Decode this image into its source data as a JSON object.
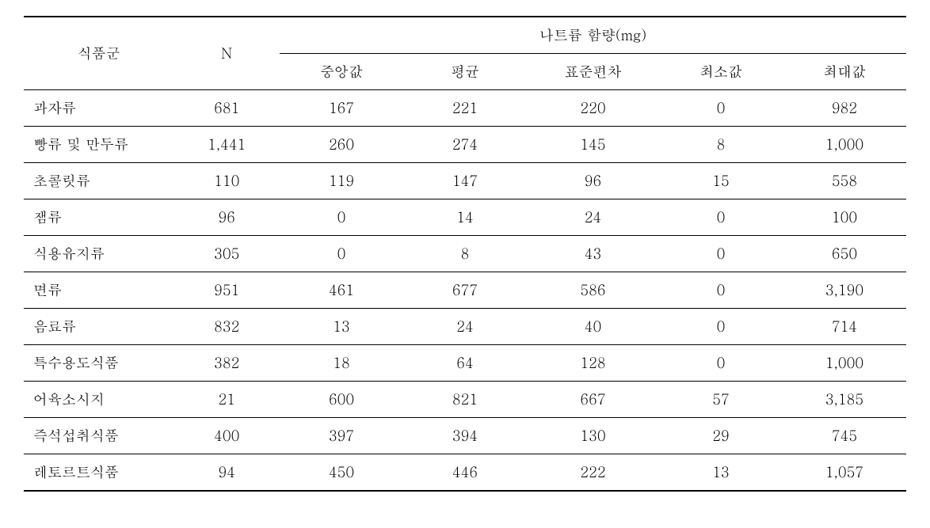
{
  "table": {
    "headers": {
      "category": "식품군",
      "n": "N",
      "sodium_group": "나트륨 함량(mg)",
      "median": "중앙값",
      "mean": "평균",
      "stddev": "표준편차",
      "min": "최소값",
      "max": "최대값"
    },
    "rows": [
      {
        "category": "과자류",
        "n": "681",
        "median": "167",
        "mean": "221",
        "stddev": "220",
        "min": "0",
        "max": "982"
      },
      {
        "category": "빵류 및 만두류",
        "n": "1,441",
        "median": "260",
        "mean": "274",
        "stddev": "145",
        "min": "8",
        "max": "1,000"
      },
      {
        "category": "초콜릿류",
        "n": "110",
        "median": "119",
        "mean": "147",
        "stddev": "96",
        "min": "15",
        "max": "558"
      },
      {
        "category": "잼류",
        "n": "96",
        "median": "0",
        "mean": "14",
        "stddev": "24",
        "min": "0",
        "max": "100"
      },
      {
        "category": "식용유지류",
        "n": "305",
        "median": "0",
        "mean": "8",
        "stddev": "43",
        "min": "0",
        "max": "650"
      },
      {
        "category": "면류",
        "n": "951",
        "median": "461",
        "mean": "677",
        "stddev": "586",
        "min": "0",
        "max": "3,190"
      },
      {
        "category": "음료류",
        "n": "832",
        "median": "13",
        "mean": "24",
        "stddev": "40",
        "min": "0",
        "max": "714"
      },
      {
        "category": "특수용도식품",
        "n": "382",
        "median": "18",
        "mean": "64",
        "stddev": "128",
        "min": "0",
        "max": "1,000"
      },
      {
        "category": "어육소시지",
        "n": "21",
        "median": "600",
        "mean": "821",
        "stddev": "667",
        "min": "57",
        "max": "3,185"
      },
      {
        "category": "즉석섭취식품",
        "n": "400",
        "median": "397",
        "mean": "394",
        "stddev": "130",
        "min": "29",
        "max": "745"
      },
      {
        "category": "레토르트식품",
        "n": "94",
        "median": "450",
        "mean": "446",
        "stddev": "222",
        "min": "13",
        "max": "1,057"
      }
    ],
    "column_widths": [
      "17%",
      "12%",
      "14%",
      "14%",
      "15%",
      "14%",
      "14%"
    ]
  }
}
